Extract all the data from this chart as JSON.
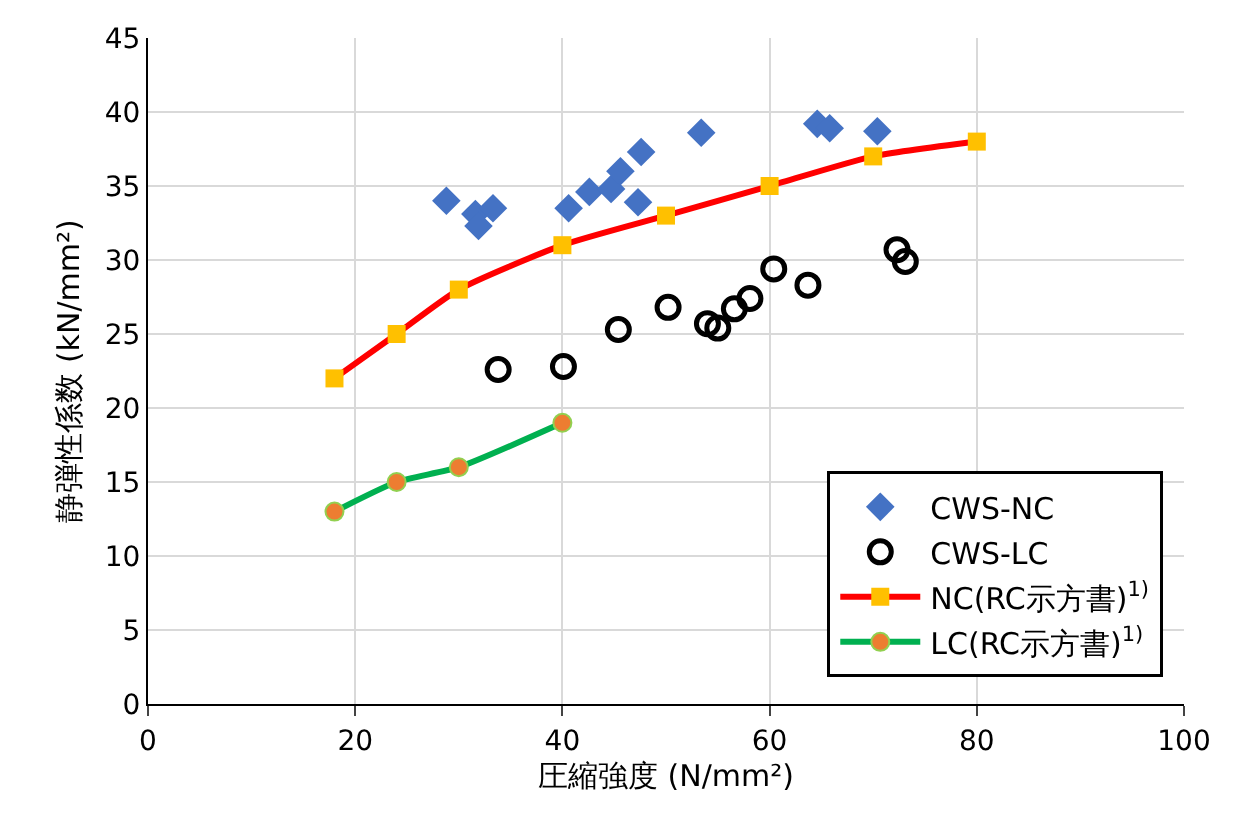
{
  "chart_data": {
    "type": "scatter",
    "xlabel": "圧縮強度 (N/mm²)",
    "ylabel": "静弾性係数 (kN/mm²)",
    "xlim": [
      0,
      100
    ],
    "xticks": [
      0,
      20,
      40,
      60,
      80,
      100
    ],
    "ylim": [
      0,
      45
    ],
    "yticks": [
      0,
      5,
      10,
      15,
      20,
      25,
      30,
      35,
      40,
      45
    ],
    "grid": true,
    "legend": "bottom right",
    "series": [
      {
        "name": "CWS-NC",
        "marker": "diamond",
        "color": "#4472c4",
        "x": [
          28.8,
          31.6,
          31.9,
          33.3,
          40.6,
          42.6,
          44.7,
          45.6,
          47.6,
          47.3,
          53.4,
          64.6,
          65.8,
          70.4
        ],
        "values": [
          34.0,
          33.1,
          32.3,
          33.5,
          33.5,
          34.6,
          34.8,
          36.0,
          37.3,
          33.9,
          38.6,
          39.2,
          38.9,
          38.7
        ]
      },
      {
        "name": "CWS-LC",
        "marker": "circle",
        "color": "#000000",
        "x": [
          33.8,
          40.1,
          45.4,
          50.2,
          54.0,
          55.0,
          56.6,
          58.1,
          60.4,
          63.7,
          72.3,
          73.1
        ],
        "values": [
          22.6,
          22.8,
          25.3,
          26.8,
          25.7,
          25.4,
          26.7,
          27.4,
          29.4,
          28.3,
          30.7,
          29.9
        ]
      },
      {
        "name": "NC(RC示方書)$^{1)}$",
        "type": "line",
        "marker": "square",
        "color": "#ff0000",
        "colors": [
          "#ffc000",
          "#ffc000",
          "#ffc000",
          "#ffc000",
          "#ffc000",
          "#ffc000",
          "#ffc000",
          "#ffc000"
        ],
        "x": [
          18,
          24,
          30,
          40,
          50,
          60,
          70,
          80
        ],
        "values": [
          22,
          25,
          28,
          31,
          33,
          35,
          37,
          38
        ]
      },
      {
        "name": "LC(RC示方書)$^{1)}$",
        "type": "line",
        "marker": "circle",
        "color": "#00b050",
        "colors": [
          "#ed7d31",
          "#ed7d31",
          "#ed7d31",
          "#ed7d31"
        ],
        "x": [
          18,
          24,
          30,
          40
        ],
        "values": [
          13,
          15,
          16,
          19
        ]
      }
    ]
  }
}
